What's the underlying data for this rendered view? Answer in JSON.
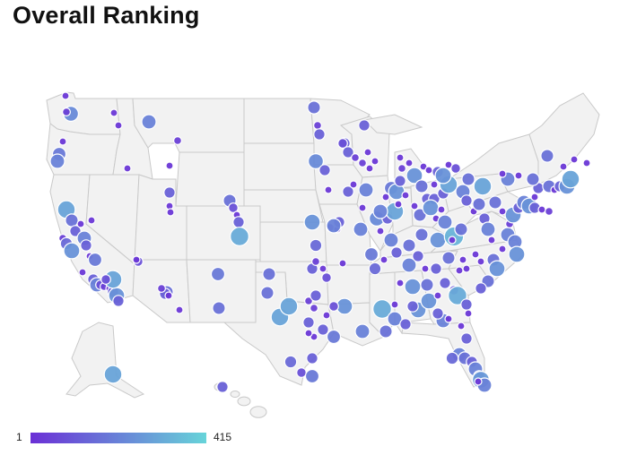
{
  "title": "Overall Ranking",
  "legend": {
    "min_label": "1",
    "max_label": "415",
    "color_low": "#6a2fd6",
    "color_high": "#67d4d9"
  },
  "colors": {
    "land": "#f2f2f2",
    "border": "#c9c9c9",
    "marker_stroke": "#ffffff"
  },
  "chart_data": {
    "type": "bubble-map",
    "region": "United States",
    "value_range": [
      1,
      415
    ],
    "color_scale": [
      "#6a2fd6",
      "#67d4d9"
    ],
    "approx_marker_count": 260
  }
}
